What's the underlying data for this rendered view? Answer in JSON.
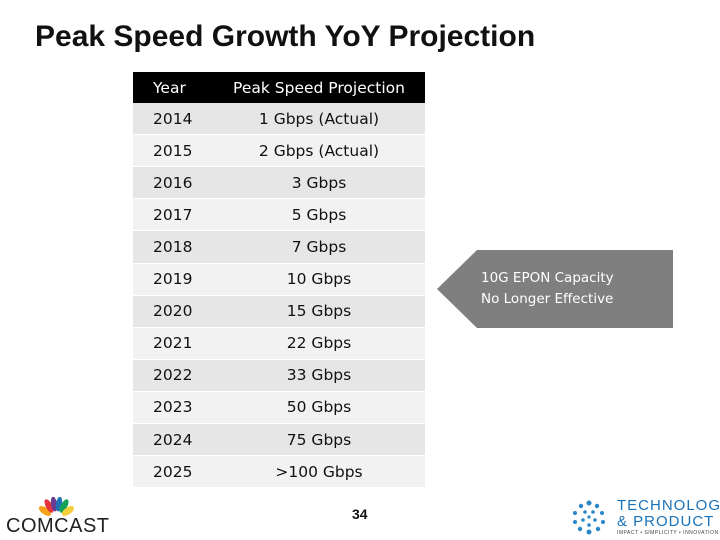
{
  "title": "Peak Speed Growth YoY Projection",
  "table": {
    "headers": [
      "Year",
      "Peak Speed Projection"
    ],
    "rows": [
      {
        "year": "2014",
        "speed": "1 Gbps (Actual)"
      },
      {
        "year": "2015",
        "speed": "2 Gbps (Actual)"
      },
      {
        "year": "2016",
        "speed": "3 Gbps"
      },
      {
        "year": "2017",
        "speed": "5 Gbps"
      },
      {
        "year": "2018",
        "speed": "7 Gbps"
      },
      {
        "year": "2019",
        "speed": "10 Gbps"
      },
      {
        "year": "2020",
        "speed": "15 Gbps"
      },
      {
        "year": "2021",
        "speed": "22 Gbps"
      },
      {
        "year": "2022",
        "speed": "33 Gbps"
      },
      {
        "year": "2023",
        "speed": "50 Gbps"
      },
      {
        "year": "2024",
        "speed": "75 Gbps"
      },
      {
        "year": "2025",
        "speed": ">100 Gbps"
      }
    ]
  },
  "callout": {
    "line1": "10G EPON Capacity",
    "line2": "No Longer Effective",
    "color": "#7f7f7f"
  },
  "page_number": "34",
  "logos": {
    "left": {
      "text": "COMCAST",
      "icon": "nbc-peacock-icon"
    },
    "right": {
      "line1": "TECHNOLOGY",
      "line2": "& PRODUCT",
      "tagline": "IMPACT • SIMPLICITY • INNOVATION",
      "icon": "dot-circle-icon"
    }
  }
}
